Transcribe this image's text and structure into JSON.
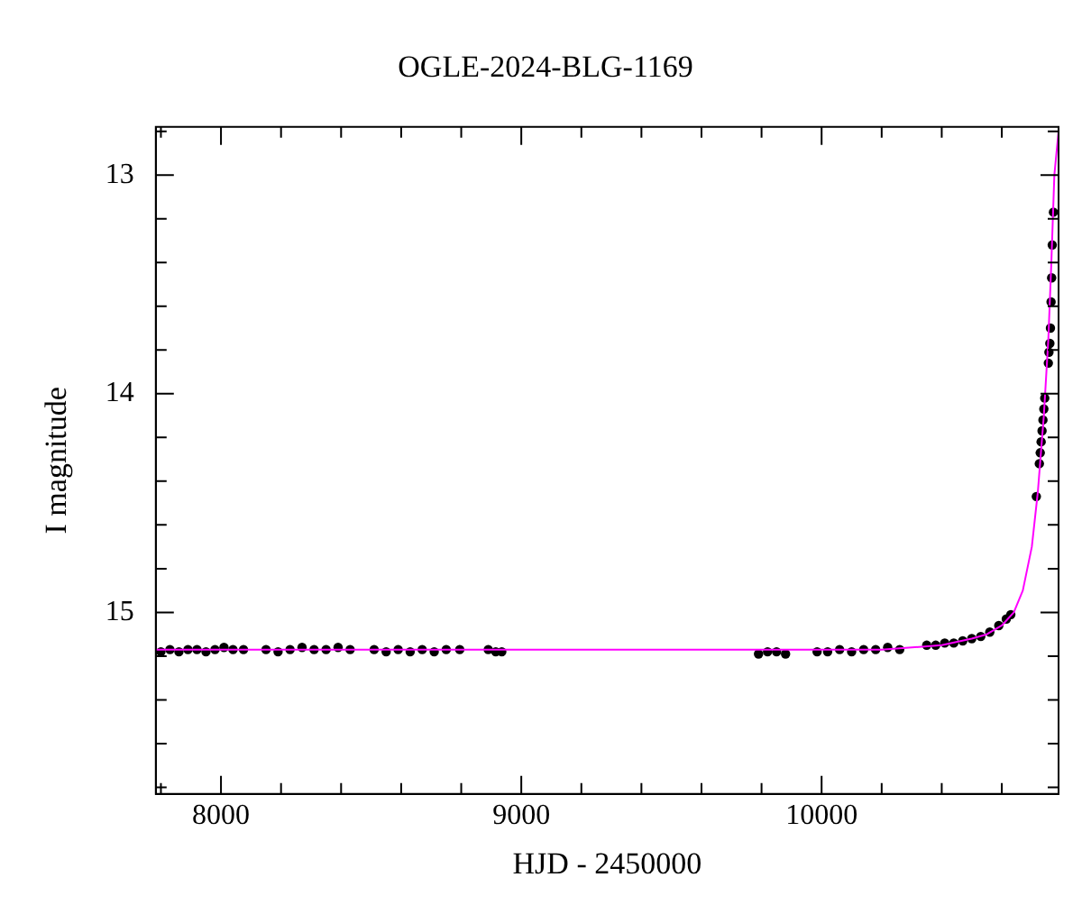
{
  "chart_data": {
    "type": "scatter",
    "title": "OGLE-2024-BLG-1169",
    "xlabel": "HJD - 2450000",
    "ylabel": "I magnitude",
    "xlim": [
      7783,
      10789
    ],
    "ylim": [
      15.83,
      12.78
    ],
    "xticks": [
      {
        "value": 7800,
        "label": null
      },
      8000,
      {
        "value": 8200,
        "label": null
      },
      {
        "value": 8400,
        "label": null
      },
      {
        "value": 8600,
        "label": null
      },
      {
        "value": 8800,
        "label": null
      },
      9000,
      {
        "value": 9200,
        "label": null
      },
      {
        "value": 9400,
        "label": null
      },
      {
        "value": 9600,
        "label": null
      },
      {
        "value": 9800,
        "label": null
      },
      10000,
      {
        "value": 10200,
        "label": null
      },
      {
        "value": 10400,
        "label": null
      },
      {
        "value": 10600,
        "label": null
      }
    ],
    "yticks": [
      {
        "value": 12.8,
        "label": null
      },
      13,
      {
        "value": 13.2,
        "label": null
      },
      {
        "value": 13.4,
        "label": null
      },
      {
        "value": 13.6,
        "label": null
      },
      {
        "value": 13.8,
        "label": null
      },
      14,
      {
        "value": 14.2,
        "label": null
      },
      {
        "value": 14.4,
        "label": null
      },
      {
        "value": 14.6,
        "label": null
      },
      {
        "value": 14.8,
        "label": null
      },
      15,
      {
        "value": 15.2,
        "label": null
      },
      {
        "value": 15.4,
        "label": null
      },
      {
        "value": 15.6,
        "label": null
      },
      {
        "value": 15.8,
        "label": null
      }
    ],
    "grid": false,
    "legend": false,
    "series": [
      {
        "type": "scatter",
        "color": "#000000",
        "marker": "circle",
        "x": [
          7800,
          7830,
          7860,
          7890,
          7920,
          7950,
          7980,
          8010,
          8040,
          8075,
          8150,
          8190,
          8230,
          8270,
          8310,
          8350,
          8390,
          8430,
          8510,
          8550,
          8590,
          8630,
          8670,
          8710,
          8750,
          8795,
          8890,
          8915,
          8935,
          9790,
          9820,
          9850,
          9880,
          9985,
          10020,
          10060,
          10100,
          10140,
          10180,
          10220,
          10260,
          10350,
          10380,
          10410,
          10440,
          10470,
          10500,
          10530,
          10560,
          10590,
          10615,
          10630,
          10715,
          10725,
          10728,
          10731,
          10734,
          10737,
          10740,
          10743,
          10755,
          10757,
          10760,
          10762,
          10764,
          10766,
          10768,
          10772
        ],
        "values": [
          15.18,
          15.17,
          15.18,
          15.17,
          15.17,
          15.18,
          15.17,
          15.16,
          15.17,
          15.17,
          15.17,
          15.18,
          15.17,
          15.16,
          15.17,
          15.17,
          15.16,
          15.17,
          15.17,
          15.18,
          15.17,
          15.18,
          15.17,
          15.18,
          15.17,
          15.17,
          15.17,
          15.18,
          15.18,
          15.19,
          15.18,
          15.18,
          15.19,
          15.18,
          15.18,
          15.17,
          15.18,
          15.17,
          15.17,
          15.16,
          15.17,
          15.15,
          15.15,
          15.14,
          15.14,
          15.13,
          15.12,
          15.11,
          15.09,
          15.06,
          15.03,
          15.01,
          14.47,
          14.32,
          14.27,
          14.22,
          14.17,
          14.12,
          14.07,
          14.02,
          13.86,
          13.81,
          13.77,
          13.7,
          13.58,
          13.47,
          13.32,
          13.17
        ]
      },
      {
        "type": "line",
        "color": "#ff00ff",
        "marker": "none",
        "x": [
          7783,
          9000,
          10000,
          10200,
          10300,
          10400,
          10500,
          10550,
          10600,
          10640,
          10670,
          10700,
          10720,
          10740,
          10755,
          10765,
          10775,
          10789
        ],
        "values": [
          15.17,
          15.17,
          15.17,
          15.17,
          15.16,
          15.15,
          15.12,
          15.1,
          15.06,
          15.0,
          14.9,
          14.7,
          14.45,
          14.1,
          13.75,
          13.4,
          13.0,
          12.8
        ]
      }
    ]
  }
}
